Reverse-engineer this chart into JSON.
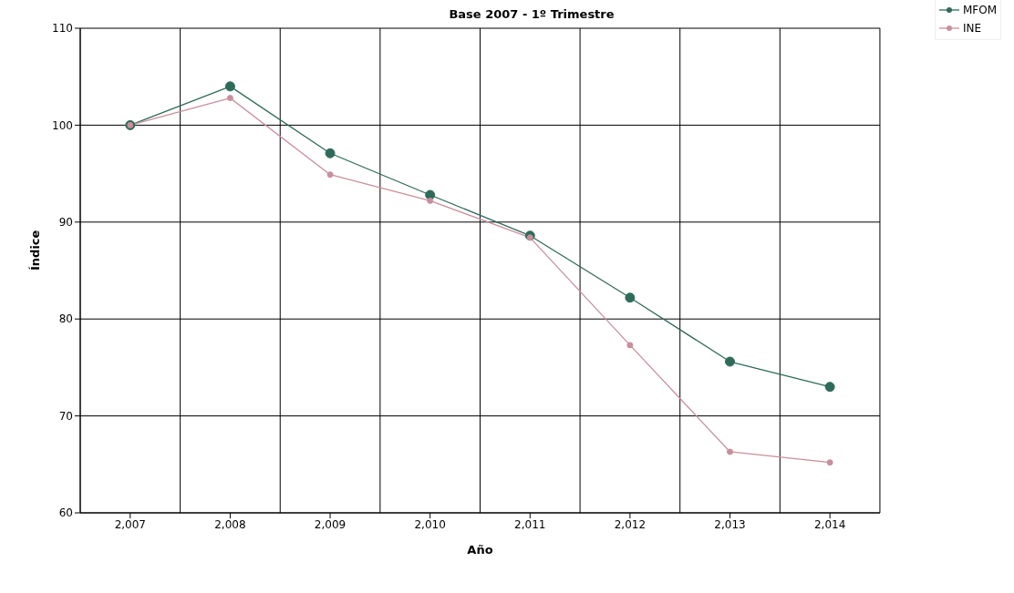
{
  "chart_data": {
    "type": "line",
    "title": "Base 2007 - 1º Trimestre",
    "xlabel": "Año",
    "ylabel": "Índice",
    "categories": [
      "2,007",
      "2,008",
      "2,009",
      "2,010",
      "2,011",
      "2,012",
      "2,013",
      "2,014"
    ],
    "series": [
      {
        "name": "MFOM",
        "color": "#2f6b5a",
        "values": [
          100,
          104.0,
          97.1,
          92.8,
          88.6,
          82.2,
          75.6,
          73.0
        ]
      },
      {
        "name": "INE",
        "color": "#c98f9c",
        "values": [
          100,
          102.8,
          94.9,
          92.2,
          88.4,
          77.3,
          66.3,
          65.2
        ]
      }
    ],
    "ylim": [
      60,
      110
    ],
    "yticks": [
      60,
      70,
      80,
      90,
      100,
      110
    ],
    "grid": true,
    "legend": "top right",
    "marker": "circle",
    "line_style": "solid"
  }
}
